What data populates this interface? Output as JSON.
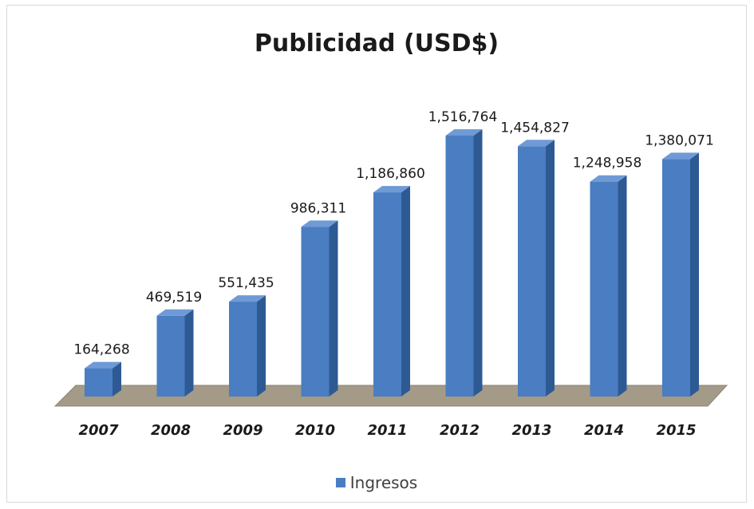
{
  "colors": {
    "bar_front": "#4a7dc2",
    "bar_side": "#2e5a94",
    "bar_top": "#6f9ad6",
    "floor": "#a39a87",
    "floor_edge": "#8c8472"
  },
  "chart_data": {
    "type": "bar",
    "title": "Publicidad (USD$)",
    "categories": [
      "2007",
      "2008",
      "2009",
      "2010",
      "2011",
      "2012",
      "2013",
      "2014",
      "2015"
    ],
    "series": [
      {
        "name": "Ingresos",
        "values": [
          164268,
          469519,
          551435,
          986311,
          1186860,
          1516764,
          1454827,
          1248958,
          1380071
        ],
        "labels": [
          "164,268",
          "469,519",
          "551,435",
          "986,311",
          "1,186,860",
          "1,516,764",
          "1,454,827",
          "1,248,958",
          "1,380,071"
        ]
      }
    ],
    "ylim": [
      0,
      1600000
    ],
    "grid": false,
    "legend_position": "bottom",
    "style": "3d-column"
  }
}
